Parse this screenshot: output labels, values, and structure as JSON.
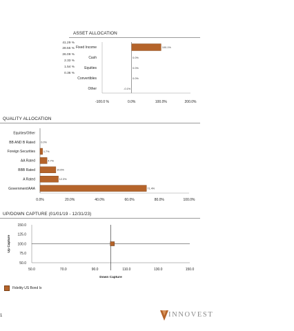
{
  "asset_allocation": {
    "title": "ASSET ALLOCATION",
    "percent_list": [
      "41.29 %",
      "28.55 %",
      "26.09 %",
      "2.33 %",
      "1.54 %",
      "0.36 %"
    ]
  },
  "quality_allocation": {
    "title": "QUALITY ALLOCATION"
  },
  "updown_capture": {
    "title": "UP/DOWN CAPTURE (01/01/19 - 12/31/23)"
  },
  "legend": {
    "label": "Fidelity US Bond Ix",
    "color": "#b5642a"
  },
  "page_number": "1",
  "logo": {
    "text": "INNOVEST"
  },
  "chart_data": [
    {
      "type": "bar",
      "orientation": "horizontal",
      "categories": [
        "Fixed Income",
        "Cash",
        "Equities",
        "Convertibles",
        "Other"
      ],
      "values": [
        100.1,
        0.0,
        0.0,
        0.0,
        -0.1
      ],
      "data_labels": [
        "100.1%",
        "0.0%",
        "0.0%",
        "0.0%",
        "-0.1%"
      ],
      "xlim": [
        -100,
        200
      ],
      "xticks": [
        "-100.0 %",
        "0.0%",
        "100.0%",
        "200.0%"
      ],
      "xtick_values": [
        -100,
        0,
        100,
        200
      ],
      "grid": false,
      "color": "#b5642a"
    },
    {
      "type": "bar",
      "orientation": "horizontal",
      "categories": [
        "Equities/Other",
        "BB AND B Rated",
        "Foreign Securities",
        "AA Rated",
        "BBB Rated",
        "A Rated",
        "Government/AAA"
      ],
      "values": [
        0,
        0.0,
        1.7,
        4.7,
        10.6,
        12.3,
        71.4
      ],
      "data_labels": [
        "",
        "0.0%",
        "1.7%",
        "4.7%",
        "10.6%",
        "12.3%",
        "71.4%"
      ],
      "xlim": [
        0,
        100
      ],
      "xticks": [
        "0.0%",
        "20.0%",
        "40.0%",
        "60.0%",
        "80.0%",
        "100.0%"
      ],
      "xtick_values": [
        0,
        20,
        40,
        60,
        80,
        100
      ],
      "grid": false,
      "color": "#b5642a"
    },
    {
      "type": "scatter",
      "series": [
        {
          "name": "Fidelity US Bond Ix",
          "x": [
            101.0
          ],
          "y": [
            100.0
          ]
        }
      ],
      "xlabel": "Down Capture",
      "ylabel": "Up Capture",
      "xlim": [
        50,
        150
      ],
      "ylim": [
        50,
        150
      ],
      "xticks": [
        "50.0",
        "70.0",
        "90.0",
        "110.0",
        "130.0",
        "150.0"
      ],
      "xtick_values": [
        50,
        70,
        90,
        110,
        130,
        150
      ],
      "yticks": [
        "150.0",
        "125.0",
        "100.0",
        "75.0",
        "50.0"
      ],
      "ytick_values": [
        150,
        125,
        100,
        75,
        50
      ],
      "reference_lines": {
        "x": 100,
        "y": 100
      },
      "legend": "bottom-left",
      "color": "#b5642a"
    }
  ]
}
